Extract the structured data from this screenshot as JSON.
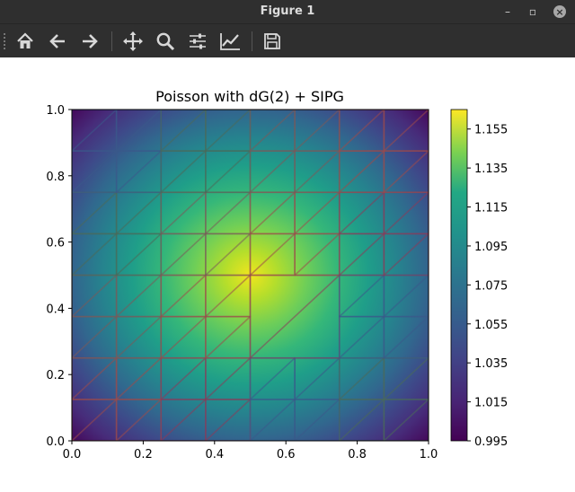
{
  "window": {
    "title": "Figure 1"
  },
  "toolbar": {
    "buttons": [
      {
        "name": "home",
        "icon": "home-icon"
      },
      {
        "name": "back",
        "icon": "arrow-left-icon"
      },
      {
        "name": "forward",
        "icon": "arrow-right-icon"
      },
      {
        "name": "pan",
        "icon": "move-icon"
      },
      {
        "name": "zoom",
        "icon": "magnifier-icon"
      },
      {
        "name": "configure-subplots",
        "icon": "sliders-icon"
      },
      {
        "name": "edit-axes",
        "icon": "chart-line-icon"
      },
      {
        "name": "save",
        "icon": "floppy-disk-icon"
      }
    ]
  },
  "chart_data": {
    "type": "heatmap",
    "title": "Poisson with dG(2) + SIPG",
    "xlabel": "",
    "ylabel": "",
    "xlim": [
      0.0,
      1.0
    ],
    "ylim": [
      0.0,
      1.0
    ],
    "x_ticks": [
      "0.0",
      "0.2",
      "0.4",
      "0.6",
      "0.8",
      "1.0"
    ],
    "y_ticks": [
      "0.0",
      "0.2",
      "0.4",
      "0.6",
      "0.8",
      "1.0"
    ],
    "colormap": "viridis",
    "colorbar": {
      "min": 0.995,
      "max": 1.165,
      "ticks": [
        "0.995",
        "1.015",
        "1.035",
        "1.055",
        "1.075",
        "1.095",
        "1.115",
        "1.135",
        "1.155"
      ]
    },
    "field": {
      "peak_value": 1.165,
      "peak_location": [
        0.5,
        0.5
      ],
      "boundary_value": 0.995
    },
    "mesh": {
      "element": "triangle",
      "coarse_cell_size": 0.25,
      "fine_cell_size": 0.125,
      "refined_regions": [
        {
          "x": [
            0.0,
            0.5
          ],
          "y": [
            0.5,
            1.0
          ]
        },
        {
          "x": [
            0.0,
            0.5
          ],
          "y": [
            0.0,
            0.5
          ]
        },
        {
          "x": [
            0.5,
            1.0
          ],
          "y": [
            0.5,
            1.0
          ]
        },
        {
          "x": [
            0.75,
            1.0
          ],
          "y": [
            0.0,
            0.5
          ]
        },
        {
          "x": [
            0.5,
            0.75
          ],
          "y": [
            0.0,
            0.25
          ]
        }
      ],
      "colors": [
        "#9c4a4a",
        "#7a5a5a",
        "#4a6a5a",
        "#3a5a8a",
        "#8a3a5a"
      ]
    }
  }
}
